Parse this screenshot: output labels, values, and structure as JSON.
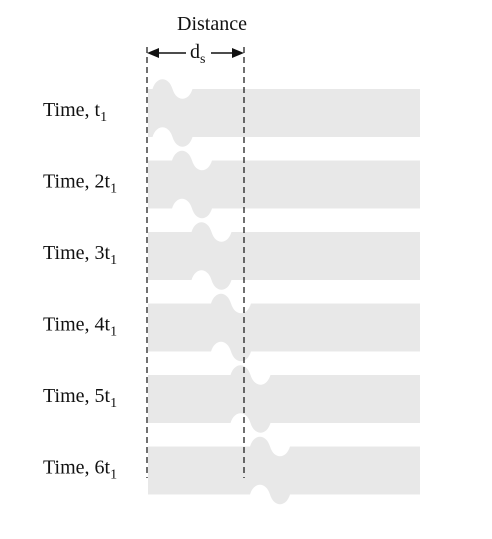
{
  "figure": {
    "distance_label": "Distance",
    "ds_main": "d",
    "ds_sub": "s",
    "rows": [
      {
        "label_main": "Time, ",
        "label_t": "t",
        "label_sub": "1",
        "multiplier": 1
      },
      {
        "label_main": "Time, 2",
        "label_t": "t",
        "label_sub": "1",
        "multiplier": 2
      },
      {
        "label_main": "Time, 3",
        "label_t": "t",
        "label_sub": "1",
        "multiplier": 3
      },
      {
        "label_main": "Time, 4",
        "label_t": "t",
        "label_sub": "1",
        "multiplier": 4
      },
      {
        "label_main": "Time, 5",
        "label_t": "t",
        "label_sub": "1",
        "multiplier": 5
      },
      {
        "label_main": "Time, 6",
        "label_t": "t",
        "label_sub": "1",
        "multiplier": 6
      }
    ]
  },
  "colors": {
    "band": "#e8e8e8",
    "ink": "#111111"
  }
}
